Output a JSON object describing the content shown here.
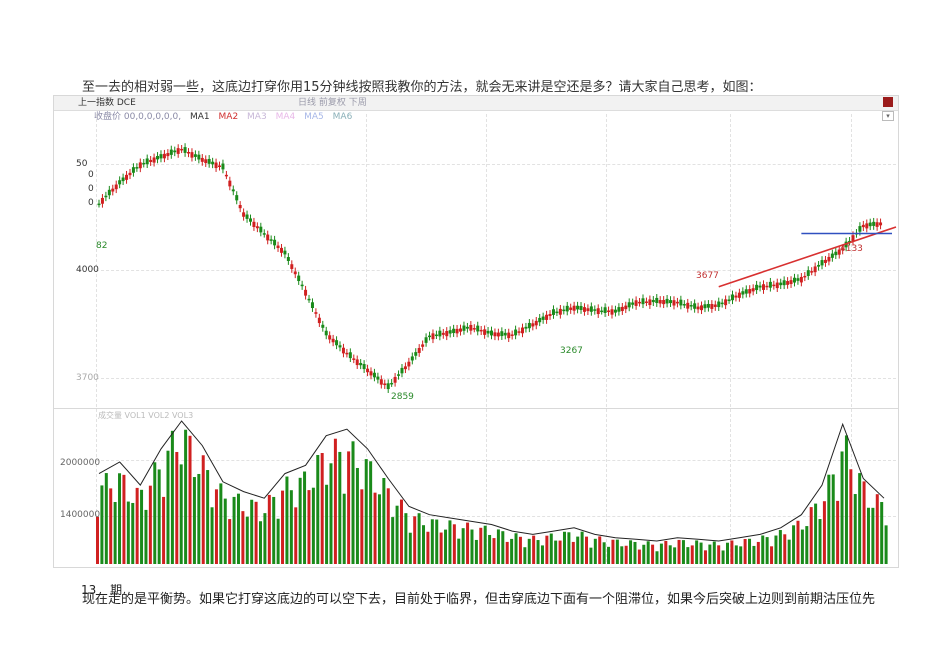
{
  "text": {
    "top_line": "至一去的相对弱一些，这底边打穿你用15分钟线按照我教你的方法，就会无来讲是空还是多？请大家自己思考，如图：",
    "bottom_line": "现在走的是平衡势。如果它打穿这底边的可以空下去，目前处于临界，但击穿底边下面有一个阻滞位，如果今后突破上边则到前期沽压位先",
    "page_number": "13",
    "page_suffix": "期"
  },
  "window": {
    "title": "上一指数 DCE",
    "title_mid": "日线  前复权  下周",
    "close_color": "#9b1b1b"
  },
  "legend": {
    "prefix": "收盘价 00,0,0,0,0,0,",
    "items": [
      {
        "label": "MA1",
        "color": "#333333"
      },
      {
        "label": "MA2",
        "color": "#d03030"
      },
      {
        "label": "MA3",
        "color": "#c8b8d8"
      },
      {
        "label": "MA4",
        "color": "#e8b8e8"
      },
      {
        "label": "MA5",
        "color": "#a8b8e8"
      },
      {
        "label": "MA6",
        "color": "#8ab0b8"
      }
    ]
  },
  "y_labels": {
    "top_a": "50",
    "top_b": "0",
    "top_c": "0",
    "top_d": "0",
    "top_e": "82",
    "mid": "4000",
    "low": "3700"
  },
  "annotations": {
    "low_point": "2859",
    "mid_low": "3267",
    "mid_high": "3677",
    "right_high": "4133"
  },
  "volume": {
    "legend": "成交量    VOL1  VOL2  VOL3",
    "y_top": "2000000",
    "y_mid": "1400000"
  },
  "chart_data": {
    "type": "candlestick",
    "price_line": [
      4280,
      4440,
      4580,
      4640,
      4700,
      4620,
      4560,
      4200,
      4050,
      3900,
      3600,
      3280,
      3130,
      3000,
      2870,
      3050,
      3260,
      3290,
      3330,
      3280,
      3270,
      3350,
      3440,
      3480,
      3460,
      3450,
      3520,
      3530,
      3520,
      3480,
      3500,
      3580,
      3640,
      3660,
      3700,
      3820,
      3930,
      4110,
      4130
    ],
    "labeled_points": [
      {
        "label": "2859",
        "value": 2859
      },
      {
        "label": "3267",
        "value": 3267
      },
      {
        "label": "3677",
        "value": 3677
      },
      {
        "label": "4133",
        "value": 4133
      }
    ],
    "volume": [
      0.55,
      0.62,
      0.48,
      0.7,
      0.95,
      0.72,
      0.5,
      0.44,
      0.4,
      0.55,
      0.6,
      0.78,
      0.82,
      0.7,
      0.52,
      0.35,
      0.3,
      0.28,
      0.26,
      0.24,
      0.2,
      0.18,
      0.2,
      0.22,
      0.18,
      0.16,
      0.15,
      0.14,
      0.16,
      0.15,
      0.14,
      0.16,
      0.18,
      0.22,
      0.3,
      0.48,
      0.85,
      0.52,
      0.4
    ],
    "trendline": {
      "from": 3640,
      "to": 4100
    },
    "support_line": 4050
  }
}
